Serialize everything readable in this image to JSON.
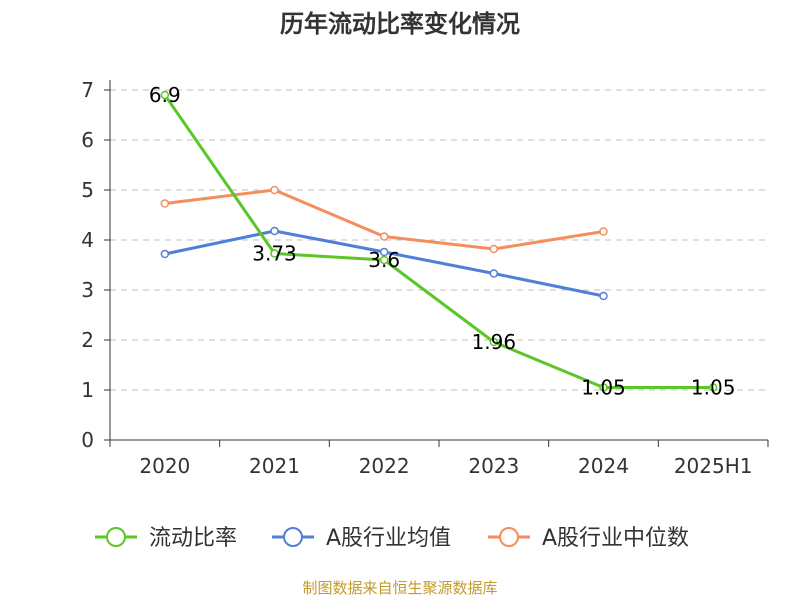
{
  "chart_data": {
    "type": "line",
    "title": "历年流动比率变化情况",
    "categories": [
      "2020",
      "2021",
      "2022",
      "2023",
      "2024",
      "2025H1"
    ],
    "y_ticks": [
      "0",
      "1",
      "2",
      "3",
      "4",
      "5",
      "6",
      "7"
    ],
    "ylim": [
      0,
      7
    ],
    "grid": "horizontal-dashed",
    "legend_position": "bottom",
    "series": [
      {
        "name": "流动比率",
        "color": "#5cc628",
        "values": [
          6.9,
          3.73,
          3.6,
          1.96,
          1.05,
          1.05
        ],
        "labels": [
          "6.9",
          "3.73",
          "3.6",
          "1.96",
          "1.05",
          "1.05"
        ]
      },
      {
        "name": "A股行业均值",
        "color": "#4f7fd8",
        "values": [
          3.72,
          4.18,
          3.76,
          3.33,
          2.88,
          null
        ]
      },
      {
        "name": "A股行业中位数",
        "color": "#f58d5c",
        "values": [
          4.73,
          5.0,
          4.07,
          3.82,
          4.17,
          null
        ]
      }
    ],
    "source": "制图数据来自恒生聚源数据库",
    "source_color": "#c39a2c"
  }
}
